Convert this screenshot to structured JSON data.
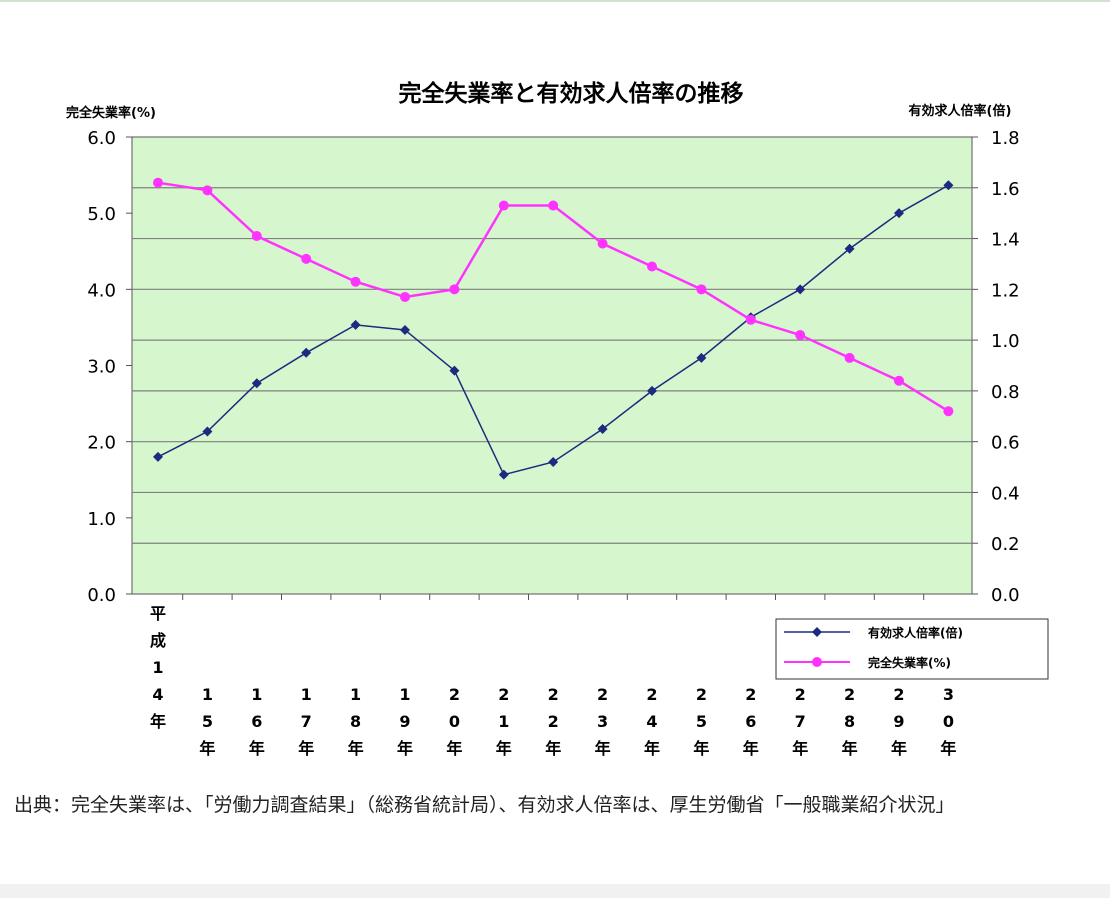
{
  "page": {
    "source_note": "出典：完全失業率は、「労働力調査結果」（総務省統計局）、有効求人倍率は、厚生労働省「一般職業紹介状況」"
  },
  "chart_data": {
    "type": "line",
    "title": "完全失業率と有効求人倍率の推移",
    "y_left_label": "完全失業率(%)",
    "y_right_label": "有効求人倍率(倍)",
    "y_left_lim": [
      0,
      6
    ],
    "y_right_lim": [
      0,
      1.8
    ],
    "y_left_ticks": [
      "0.0",
      "1.0",
      "2.0",
      "3.0",
      "4.0",
      "5.0",
      "6.0"
    ],
    "y_right_ticks": [
      "0.0",
      "0.2",
      "0.4",
      "0.6",
      "0.8",
      "1.0",
      "1.2",
      "1.4",
      "1.6",
      "1.8"
    ],
    "categories": [
      "平成14年",
      "15年",
      "16年",
      "17年",
      "18年",
      "19年",
      "20年",
      "21年",
      "22年",
      "23年",
      "24年",
      "25年",
      "26年",
      "27年",
      "28年",
      "29年",
      "30年"
    ],
    "category_labels_vertical": [
      [
        "平",
        "成",
        "1",
        "4",
        "年"
      ],
      [
        "1",
        "5",
        "年"
      ],
      [
        "1",
        "6",
        "年"
      ],
      [
        "1",
        "7",
        "年"
      ],
      [
        "1",
        "8",
        "年"
      ],
      [
        "1",
        "9",
        "年"
      ],
      [
        "2",
        "0",
        "年"
      ],
      [
        "2",
        "1",
        "年"
      ],
      [
        "2",
        "2",
        "年"
      ],
      [
        "2",
        "3",
        "年"
      ],
      [
        "2",
        "4",
        "年"
      ],
      [
        "2",
        "5",
        "年"
      ],
      [
        "2",
        "6",
        "年"
      ],
      [
        "2",
        "7",
        "年"
      ],
      [
        "2",
        "8",
        "年"
      ],
      [
        "2",
        "9",
        "年"
      ],
      [
        "3",
        "0",
        "年"
      ]
    ],
    "grid": true,
    "plot_background": "#d6f7cd",
    "legend_position": "bottom-right",
    "series": [
      {
        "name": "有効求人倍率(倍)",
        "axis": "right",
        "color": "#1c2a80",
        "marker": "diamond",
        "values": [
          0.54,
          0.64,
          0.83,
          0.95,
          1.06,
          1.04,
          0.88,
          0.47,
          0.52,
          0.65,
          0.8,
          0.93,
          1.09,
          1.2,
          1.36,
          1.5,
          1.61
        ]
      },
      {
        "name": "完全失業率(%)",
        "axis": "left",
        "color": "#ff33ff",
        "marker": "circle",
        "values": [
          5.4,
          5.3,
          4.7,
          4.4,
          4.1,
          3.9,
          4.0,
          5.1,
          5.1,
          4.6,
          4.3,
          4.0,
          3.6,
          3.4,
          3.1,
          2.8,
          2.4
        ]
      }
    ]
  }
}
